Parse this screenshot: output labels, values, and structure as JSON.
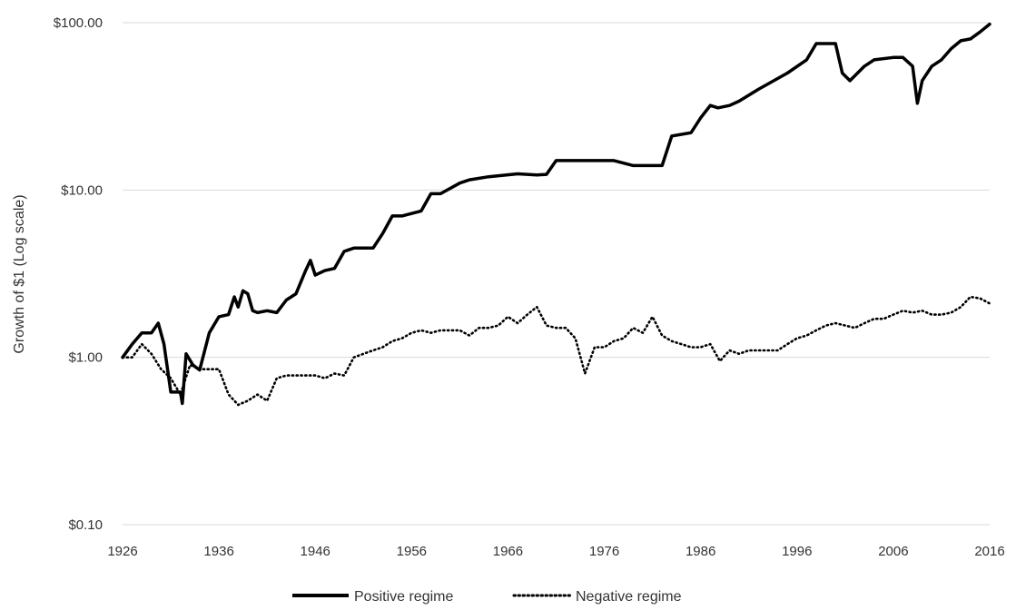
{
  "chart_data": {
    "type": "line",
    "title": "",
    "xlabel": "",
    "ylabel": "Growth of $1 (Log scale)",
    "y_scale": "log",
    "xlim": [
      1926,
      2016
    ],
    "ylim": [
      0.1,
      100
    ],
    "x_ticks": [
      1926,
      1936,
      1946,
      1956,
      1966,
      1976,
      1986,
      1996,
      2006,
      2016
    ],
    "y_ticks": [
      0.1,
      1,
      10,
      100
    ],
    "y_tick_labels": [
      "$0.10",
      "$1.00",
      "$10.00",
      "$100.00"
    ],
    "grid": "horizontal",
    "legend": "bottom",
    "series": [
      {
        "name": "Positive regime",
        "style": "solid",
        "color": "#000000",
        "x": [
          1926,
          1927,
          1928,
          1929,
          1929.7,
          1930.3,
          1931,
          1932,
          1932.2,
          1932.6,
          1933.3,
          1934,
          1935,
          1936,
          1937,
          1937.6,
          1938,
          1938.5,
          1939,
          1939.5,
          1940,
          1941,
          1942,
          1943,
          1944,
          1945,
          1945.5,
          1946,
          1947,
          1948,
          1949,
          1950,
          1952,
          1953,
          1954,
          1955,
          1957,
          1958,
          1959,
          1961,
          1962,
          1964,
          1967,
          1969,
          1970,
          1971,
          1975,
          1977,
          1979,
          1982,
          1983,
          1985,
          1986,
          1987,
          1987.8,
          1989,
          1990,
          1992,
          1995,
          1997,
          1998,
          2000,
          2000.7,
          2001.5,
          2003,
          2004,
          2006,
          2007,
          2008,
          2008.5,
          2009,
          2010,
          2011,
          2012,
          2013,
          2014,
          2015,
          2016
        ],
        "values": [
          1.0,
          1.2,
          1.4,
          1.4,
          1.6,
          1.2,
          0.62,
          0.62,
          0.53,
          1.05,
          0.9,
          0.84,
          1.4,
          1.75,
          1.8,
          2.3,
          2.0,
          2.5,
          2.4,
          1.9,
          1.85,
          1.9,
          1.85,
          2.2,
          2.4,
          3.3,
          3.8,
          3.1,
          3.3,
          3.4,
          4.3,
          4.5,
          4.5,
          5.5,
          7.0,
          7.0,
          7.5,
          9.5,
          9.5,
          11.0,
          11.5,
          12.0,
          12.5,
          12.3,
          12.4,
          15.0,
          15.0,
          15.0,
          14.0,
          14.0,
          21.0,
          22.0,
          27.0,
          32.0,
          31.0,
          32.0,
          34.0,
          40.0,
          50.0,
          60.0,
          75.0,
          75.0,
          50.0,
          45.0,
          55.0,
          60.0,
          62.0,
          62.0,
          55.0,
          33.0,
          45.0,
          55.0,
          60.0,
          70.0,
          78.0,
          80.0,
          88.0,
          98.0
        ]
      },
      {
        "name": "Negative regime",
        "style": "dotted",
        "color": "#000000",
        "x": [
          1926,
          1927,
          1928,
          1929,
          1930,
          1931,
          1932,
          1933,
          1934,
          1935,
          1936,
          1937,
          1938,
          1939,
          1940,
          1941,
          1942,
          1943,
          1944,
          1945,
          1946,
          1947,
          1948,
          1949,
          1950,
          1951,
          1952,
          1953,
          1954,
          1955,
          1956,
          1957,
          1958,
          1959,
          1960,
          1961,
          1962,
          1963,
          1964,
          1965,
          1966,
          1967,
          1968,
          1969,
          1970,
          1971,
          1972,
          1973,
          1974,
          1975,
          1976,
          1977,
          1978,
          1979,
          1980,
          1981,
          1982,
          1983,
          1984,
          1985,
          1986,
          1987,
          1988,
          1989,
          1990,
          1991,
          1992,
          1993,
          1994,
          1995,
          1996,
          1997,
          1998,
          1999,
          2000,
          2001,
          2002,
          2003,
          2004,
          2005,
          2006,
          2007,
          2008,
          2009,
          2010,
          2011,
          2012,
          2013,
          2014,
          2015,
          2016
        ],
        "values": [
          1.0,
          1.0,
          1.2,
          1.05,
          0.85,
          0.75,
          0.6,
          0.9,
          0.85,
          0.85,
          0.85,
          0.6,
          0.52,
          0.55,
          0.6,
          0.55,
          0.75,
          0.78,
          0.78,
          0.78,
          0.78,
          0.75,
          0.8,
          0.78,
          1.0,
          1.05,
          1.1,
          1.15,
          1.25,
          1.3,
          1.4,
          1.45,
          1.4,
          1.45,
          1.45,
          1.45,
          1.35,
          1.5,
          1.5,
          1.55,
          1.75,
          1.6,
          1.8,
          2.0,
          1.55,
          1.5,
          1.5,
          1.3,
          0.8,
          1.15,
          1.15,
          1.25,
          1.3,
          1.5,
          1.4,
          1.75,
          1.35,
          1.25,
          1.2,
          1.15,
          1.15,
          1.2,
          0.95,
          1.1,
          1.05,
          1.1,
          1.1,
          1.1,
          1.1,
          1.2,
          1.3,
          1.35,
          1.45,
          1.55,
          1.6,
          1.55,
          1.5,
          1.6,
          1.7,
          1.7,
          1.8,
          1.9,
          1.85,
          1.9,
          1.8,
          1.8,
          1.85,
          2.0,
          2.3,
          2.25,
          2.1
        ]
      }
    ]
  }
}
